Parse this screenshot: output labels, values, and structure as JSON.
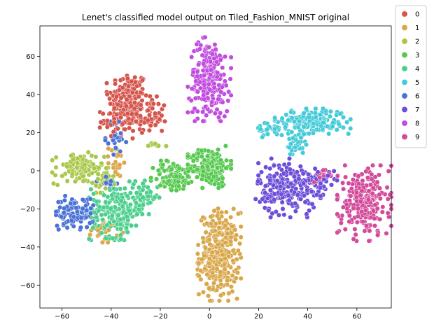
{
  "chart_data": {
    "type": "scatter",
    "title": "Lenet's classified model output on Tiled_Fashion_MNIST original",
    "xlabel": "",
    "ylabel": "",
    "xlim": [
      -69,
      74
    ],
    "ylim": [
      -72,
      76
    ],
    "xticks": [
      -60,
      -40,
      -20,
      0,
      20,
      40,
      60
    ],
    "yticks": [
      -60,
      -40,
      -20,
      0,
      20,
      40,
      60
    ],
    "xtick_labels": [
      "−60",
      "−40",
      "−20",
      "0",
      "20",
      "40",
      "60"
    ],
    "ytick_labels": [
      "−60",
      "−40",
      "−20",
      "0",
      "20",
      "40",
      "60"
    ],
    "grid": false,
    "legend": "outside-right",
    "series": [
      {
        "name": "0",
        "color": "#d5544b",
        "clusters": [
          [
            -33,
            38,
            4,
            7,
            160
          ],
          [
            -25,
            28,
            4,
            5,
            70
          ],
          [
            -38,
            26,
            3,
            4,
            50
          ]
        ]
      },
      {
        "name": "1",
        "color": "#d9a74a",
        "clusters": [
          [
            4,
            -44,
            4,
            11,
            330
          ],
          [
            -42,
            -31,
            3,
            3,
            25
          ],
          [
            -38,
            5,
            1.5,
            4,
            20
          ]
        ]
      },
      {
        "name": "2",
        "color": "#a8c848",
        "clusters": [
          [
            -53,
            1,
            5,
            4,
            110
          ],
          [
            -43,
            -5,
            2,
            3,
            30
          ],
          [
            -22,
            13,
            2,
            1,
            10
          ]
        ]
      },
      {
        "name": "3",
        "color": "#56c94f",
        "clusters": [
          [
            0,
            2,
            4,
            5,
            200
          ],
          [
            -15,
            -3,
            4,
            4,
            90
          ]
        ]
      },
      {
        "name": "4",
        "color": "#4bcf8c",
        "clusters": [
          [
            -38,
            -21,
            5,
            7,
            200
          ],
          [
            -27,
            -14,
            3,
            4,
            50
          ]
        ]
      },
      {
        "name": "5",
        "color": "#44cbd8",
        "clusters": [
          [
            42,
            26,
            7,
            3,
            180
          ],
          [
            35,
            14,
            2,
            4,
            40
          ],
          [
            25,
            22,
            3,
            2,
            30
          ]
        ]
      },
      {
        "name": "6",
        "color": "#4a72d6",
        "clusters": [
          [
            -55,
            -22,
            4,
            4,
            100
          ],
          [
            -38,
            17,
            2,
            4,
            30
          ],
          [
            -42,
            -5,
            2,
            2,
            15
          ]
        ]
      },
      {
        "name": "7",
        "color": "#6c4ed8",
        "clusters": [
          [
            32,
            -9,
            6,
            7,
            240
          ],
          [
            46,
            -6,
            3,
            3,
            30
          ]
        ]
      },
      {
        "name": "8",
        "color": "#c24be0",
        "clusters": [
          [
            0,
            48,
            4,
            10,
            230
          ]
        ]
      },
      {
        "name": "9",
        "color": "#d34a9b",
        "clusters": [
          [
            63,
            -17,
            5,
            9,
            240
          ],
          [
            45,
            -3,
            2,
            2,
            20
          ]
        ]
      }
    ]
  }
}
